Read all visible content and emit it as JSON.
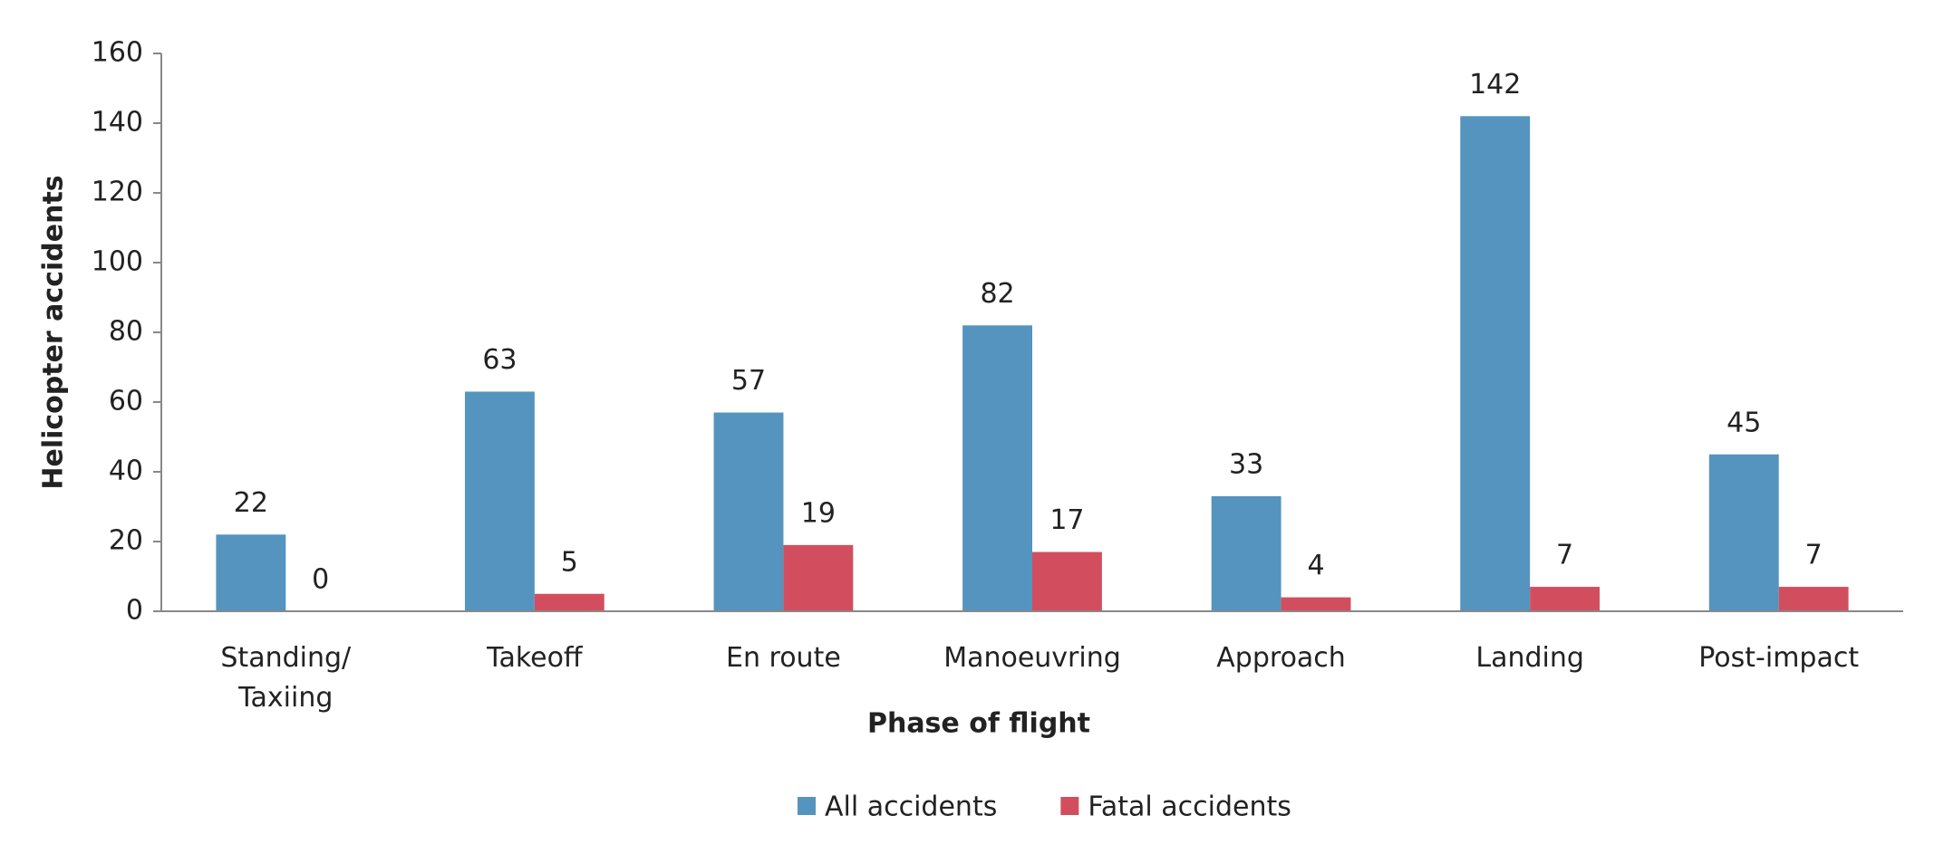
{
  "chart_data": {
    "type": "bar",
    "x_label": "Phase of flight",
    "y_label": "Helicopter accidents",
    "categories": [
      "Standing/ Taxiing",
      "Takeoff",
      "En route",
      "Manoeuvring",
      "Approach",
      "Landing",
      "Post-impact"
    ],
    "series": [
      {
        "name": "All accidents",
        "color": "#5594be",
        "values": [
          22,
          63,
          57,
          82,
          33,
          142,
          45
        ]
      },
      {
        "name": "Fatal accidents",
        "color": "#d24e5e",
        "values": [
          0,
          5,
          19,
          17,
          4,
          7,
          7
        ]
      }
    ],
    "ylim": [
      0,
      160
    ],
    "yticks": [
      0,
      20,
      40,
      60,
      80,
      100,
      120,
      140,
      160
    ],
    "grid": false,
    "legend": "bottom"
  }
}
